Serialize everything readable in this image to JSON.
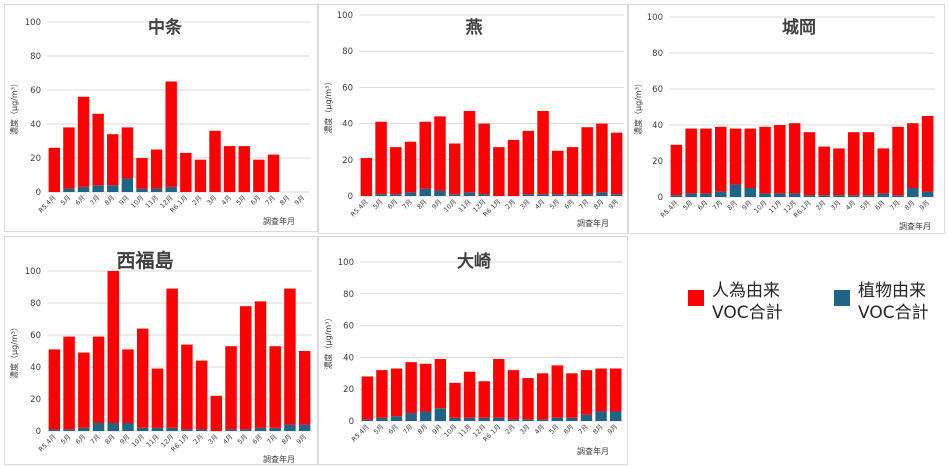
{
  "chart_data": [
    {
      "type": "bar",
      "stacked": true,
      "title": "中条",
      "ylabel": "濃度（µg/m³）",
      "xlabel": "調査年月",
      "ylim": [
        0,
        100
      ],
      "yticks": [
        0,
        20,
        40,
        60,
        80,
        100
      ],
      "categories": [
        "R5.4月",
        "5月",
        "6月",
        "7月",
        "8月",
        "9月",
        "10月",
        "11月",
        "12月",
        "R6.1月",
        "2月",
        "3月",
        "4月",
        "5月",
        "6月",
        "7月",
        "8月",
        "9月"
      ],
      "series": [
        {
          "name": "人為由来VOC合計",
          "values": [
            26,
            36,
            53,
            42,
            30,
            30,
            18,
            23,
            62,
            23,
            19,
            36,
            27,
            27,
            19,
            22,
            0,
            0
          ]
        },
        {
          "name": "植物由来VOC合計",
          "values": [
            0,
            2,
            3,
            4,
            4,
            8,
            2,
            2,
            3,
            0,
            0,
            0,
            0,
            0,
            0,
            0,
            0,
            0
          ]
        }
      ]
    },
    {
      "type": "bar",
      "stacked": true,
      "title": "燕",
      "ylabel": "濃度（µg/m³）",
      "xlabel": "調査年月",
      "ylim": [
        0,
        100
      ],
      "yticks": [
        0,
        20,
        40,
        60,
        80,
        100
      ],
      "categories": [
        "R5.4月",
        "5月",
        "6月",
        "7月",
        "8月",
        "9月",
        "10月",
        "11月",
        "12月",
        "R6.1月",
        "2月",
        "3月",
        "4月",
        "5月",
        "6月",
        "7月",
        "8月",
        "9月"
      ],
      "series": [
        {
          "name": "人為由来VOC合計",
          "values": [
            21,
            40,
            26,
            28,
            37,
            41,
            28,
            45,
            39,
            27,
            31,
            35,
            46,
            24,
            26,
            37,
            38,
            34
          ]
        },
        {
          "name": "植物由来VOC合計",
          "values": [
            0,
            1,
            1,
            2,
            4,
            3,
            1,
            2,
            1,
            0,
            0,
            1,
            1,
            1,
            1,
            1,
            2,
            1
          ]
        }
      ]
    },
    {
      "type": "bar",
      "stacked": true,
      "title": "城岡",
      "ylabel": "濃度（µg/m³）",
      "xlabel": "調査年月",
      "ylim": [
        0,
        100
      ],
      "yticks": [
        0,
        20,
        40,
        60,
        80,
        100
      ],
      "categories": [
        "R5.4月",
        "5月",
        "6月",
        "7月",
        "8月",
        "9月",
        "10月",
        "11月",
        "12月",
        "R6.1月",
        "2月",
        "3月",
        "4月",
        "5月",
        "6月",
        "7月",
        "8月",
        "9月"
      ],
      "series": [
        {
          "name": "人為由来VOC合計",
          "values": [
            28,
            36,
            36,
            36,
            31,
            33,
            37,
            38,
            39,
            35,
            27,
            26,
            35,
            35,
            25,
            38,
            36,
            42
          ]
        },
        {
          "name": "植物由来VOC合計",
          "values": [
            1,
            2,
            2,
            3,
            7,
            5,
            2,
            2,
            2,
            1,
            1,
            1,
            1,
            1,
            2,
            1,
            5,
            3
          ]
        }
      ]
    },
    {
      "type": "bar",
      "stacked": true,
      "title": "西福島",
      "ylabel": "濃度（µg/m³）",
      "xlabel": "調査年月",
      "ylim": [
        0,
        100
      ],
      "yticks": [
        0,
        20,
        40,
        60,
        80,
        100
      ],
      "categories": [
        "R5.4月",
        "5月",
        "6月",
        "7月",
        "8月",
        "9月",
        "10月",
        "11月",
        "12月",
        "R6.1月",
        "2月",
        "3月",
        "4月",
        "5月",
        "6月",
        "7月",
        "8月",
        "9月"
      ],
      "series": [
        {
          "name": "人為由来VOC合計",
          "values": [
            50,
            58,
            47,
            54,
            95,
            46,
            62,
            37,
            87,
            53,
            43,
            22,
            52,
            77,
            79,
            51,
            85,
            46
          ]
        },
        {
          "name": "植物由来VOC合計",
          "values": [
            1,
            1,
            2,
            5,
            5,
            5,
            2,
            2,
            2,
            1,
            1,
            0,
            1,
            1,
            2,
            2,
            4,
            4
          ]
        }
      ]
    },
    {
      "type": "bar",
      "stacked": true,
      "title": "大崎",
      "ylabel": "濃度（µg/m³）",
      "xlabel": "調査年月",
      "ylim": [
        0,
        100
      ],
      "yticks": [
        0,
        20,
        40,
        60,
        80,
        100
      ],
      "categories": [
        "R5.4月",
        "5月",
        "6月",
        "7月",
        "8月",
        "9月",
        "10月",
        "11月",
        "12月",
        "R6.1月",
        "2月",
        "3月",
        "4月",
        "5月",
        "6月",
        "7月",
        "8月",
        "9月"
      ],
      "series": [
        {
          "name": "人為由来VOC合計",
          "values": [
            27,
            30,
            30,
            32,
            30,
            31,
            22,
            29,
            23,
            37,
            31,
            26,
            29,
            33,
            28,
            28,
            27,
            27
          ]
        },
        {
          "name": "植物由来VOC合計",
          "values": [
            1,
            2,
            3,
            5,
            6,
            8,
            2,
            2,
            2,
            2,
            1,
            1,
            1,
            2,
            2,
            4,
            6,
            6
          ]
        }
      ]
    }
  ],
  "legend": {
    "items": [
      {
        "line1": "人為由来",
        "line2": "VOC合計",
        "color": "#ff0000"
      },
      {
        "line1": "植物由来",
        "line2": "VOC合計",
        "color": "#1f6385"
      }
    ]
  },
  "colors": {
    "anthropogenic": "#ff0000",
    "biogenic": "#1f6385",
    "grid": "#d9d9d9",
    "text": "#404040"
  }
}
